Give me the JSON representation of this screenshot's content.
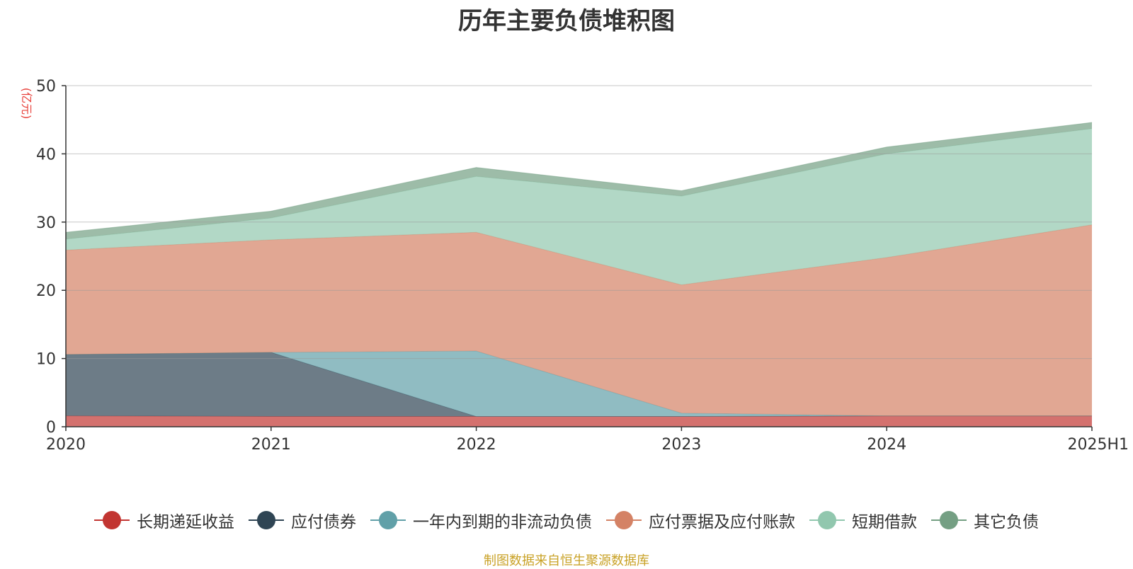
{
  "chart_data": {
    "type": "area",
    "stacked": true,
    "title": "历年主要负债堆积图",
    "ylabel": "(亿元)",
    "ylim": [
      0,
      50
    ],
    "yticks": [
      0,
      10,
      20,
      30,
      40,
      50
    ],
    "categories": [
      "2020",
      "2021",
      "2022",
      "2023",
      "2024",
      "2025H1"
    ],
    "grid": true,
    "legend_position": "bottom",
    "series": [
      {
        "name": "长期递延收益",
        "color": "#c23531",
        "values": [
          1.6,
          1.5,
          1.5,
          1.5,
          1.6,
          1.6
        ]
      },
      {
        "name": "应付债券",
        "color": "#2f4554",
        "values": [
          9.0,
          9.4,
          0.0,
          0.0,
          0.0,
          0.0
        ]
      },
      {
        "name": "一年内到期的非流动负债",
        "color": "#61a0a8",
        "values": [
          0.0,
          0.0,
          9.6,
          0.5,
          0.0,
          0.0
        ]
      },
      {
        "name": "应付票据及应付账款",
        "color": "#d48265",
        "values": [
          15.3,
          16.5,
          17.4,
          18.8,
          23.2,
          28.0
        ]
      },
      {
        "name": "短期借款",
        "color": "#91c7ae",
        "values": [
          1.6,
          3.2,
          8.2,
          13.0,
          15.2,
          14.1
        ]
      },
      {
        "name": "其它负债",
        "color": "#749f83",
        "values": [
          1.0,
          1.0,
          1.3,
          0.8,
          1.0,
          0.9
        ]
      }
    ],
    "source": "制图数据来自恒生聚源数据库"
  }
}
